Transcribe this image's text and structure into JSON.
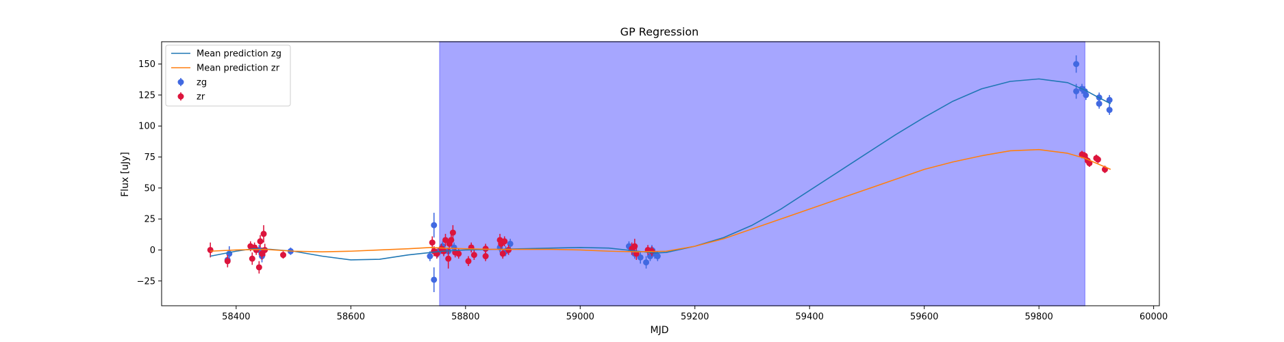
{
  "chart_data": {
    "type": "scatter",
    "title": "GP Regression",
    "xlabel": "MJD",
    "ylabel": "Flux [uJy]",
    "xlim": [
      58270,
      60010
    ],
    "ylim": [
      -45,
      168
    ],
    "xticks": [
      58400,
      58600,
      58800,
      59000,
      59200,
      59400,
      59600,
      59800,
      60000
    ],
    "yticks": [
      -25,
      0,
      25,
      50,
      75,
      100,
      125,
      150
    ],
    "legend_position": "top-left",
    "shaded_region": {
      "x0": 58755,
      "x1": 59880,
      "color": "#a6a6ff"
    },
    "colors": {
      "zg_line": "#1f77b4",
      "zr_line": "#ff7f0e",
      "zg_points": "#4169e1",
      "zr_points": "#dc143c"
    },
    "legend": [
      "Mean prediction zg",
      "Mean prediction zr",
      "zg",
      "zr"
    ],
    "series": [
      {
        "name": "Mean prediction zg",
        "kind": "line",
        "x": [
          58355,
          58400,
          58430,
          58460,
          58500,
          58550,
          58600,
          58650,
          58700,
          58740,
          58760,
          58800,
          58850,
          58900,
          58950,
          59000,
          59050,
          59100,
          59130,
          59150,
          59200,
          59250,
          59300,
          59350,
          59400,
          59450,
          59500,
          59550,
          59600,
          59650,
          59700,
          59750,
          59800,
          59850,
          59880,
          59900,
          59925
        ],
        "y": [
          -5,
          -1,
          1,
          0.5,
          -1,
          -5,
          -8,
          -7.5,
          -4,
          -2,
          -1,
          0,
          0.5,
          1,
          1.5,
          2,
          1.5,
          -1,
          -2.5,
          -2,
          3,
          10,
          20,
          33,
          48,
          63,
          78,
          93,
          107,
          120,
          130,
          136,
          138,
          135,
          129,
          124,
          118
        ]
      },
      {
        "name": "Mean prediction zr",
        "kind": "line",
        "x": [
          58355,
          58400,
          58450,
          58500,
          58550,
          58600,
          58650,
          58700,
          58740,
          58760,
          58800,
          58850,
          58900,
          58950,
          59000,
          59050,
          59100,
          59150,
          59200,
          59250,
          59300,
          59350,
          59400,
          59450,
          59500,
          59550,
          59600,
          59650,
          59700,
          59750,
          59800,
          59850,
          59880,
          59900,
          59925
        ],
        "y": [
          -1,
          0,
          0.5,
          -1,
          -1.5,
          -1,
          0,
          1,
          2,
          1.5,
          1,
          0.5,
          0.5,
          0.5,
          0,
          -1,
          -1.5,
          -1,
          3,
          9,
          17,
          25,
          33,
          41,
          49,
          57,
          65,
          71,
          76,
          80,
          81,
          78,
          74,
          70,
          65
        ]
      },
      {
        "name": "zg",
        "kind": "points",
        "points": [
          [
            58385,
            -8,
            5
          ],
          [
            58388,
            -3,
            6
          ],
          [
            58440,
            0,
            4
          ],
          [
            58445,
            -5,
            5
          ],
          [
            58495,
            -1,
            3
          ],
          [
            58738,
            -5,
            4
          ],
          [
            58745,
            20,
            10
          ],
          [
            58745,
            -24,
            10
          ],
          [
            58752,
            -2,
            4
          ],
          [
            58760,
            3,
            4
          ],
          [
            58770,
            -1,
            3
          ],
          [
            58780,
            2,
            4
          ],
          [
            58860,
            2,
            4
          ],
          [
            58870,
            -1,
            4
          ],
          [
            58878,
            5,
            4
          ],
          [
            59085,
            3,
            4
          ],
          [
            59095,
            -3,
            4
          ],
          [
            59105,
            -6,
            5
          ],
          [
            59115,
            -10,
            5
          ],
          [
            59122,
            -5,
            4
          ],
          [
            59125,
            0,
            4
          ],
          [
            59130,
            -3,
            4
          ],
          [
            59135,
            -5,
            4
          ],
          [
            59865,
            150,
            7
          ],
          [
            59865,
            128,
            6
          ],
          [
            59875,
            130,
            4
          ],
          [
            59880,
            128,
            4
          ],
          [
            59882,
            125,
            4
          ],
          [
            59905,
            123,
            4
          ],
          [
            59905,
            118,
            4
          ],
          [
            59923,
            121,
            4
          ],
          [
            59923,
            113,
            4
          ]
        ]
      },
      {
        "name": "zr",
        "kind": "points",
        "points": [
          [
            58355,
            0,
            6
          ],
          [
            58385,
            -9,
            5
          ],
          [
            58425,
            3,
            4
          ],
          [
            58428,
            -7,
            5
          ],
          [
            58432,
            2,
            4
          ],
          [
            58435,
            0,
            4
          ],
          [
            58440,
            -14,
            5
          ],
          [
            58442,
            7,
            5
          ],
          [
            58445,
            -3,
            5
          ],
          [
            58448,
            13,
            7
          ],
          [
            58450,
            0,
            5
          ],
          [
            58482,
            -4,
            3
          ],
          [
            58742,
            6,
            5
          ],
          [
            58745,
            -1,
            4
          ],
          [
            58750,
            -3,
            4
          ],
          [
            58758,
            1,
            4
          ],
          [
            58762,
            -1,
            4
          ],
          [
            58765,
            8,
            5
          ],
          [
            58770,
            -7,
            8
          ],
          [
            58772,
            5,
            5
          ],
          [
            58775,
            8,
            5
          ],
          [
            58778,
            14,
            6
          ],
          [
            58782,
            -2,
            4
          ],
          [
            58788,
            -3,
            4
          ],
          [
            58805,
            -9,
            4
          ],
          [
            58810,
            2,
            4
          ],
          [
            58815,
            -4,
            4
          ],
          [
            58835,
            1,
            4
          ],
          [
            58835,
            -5,
            4
          ],
          [
            58860,
            8,
            5
          ],
          [
            58862,
            5,
            5
          ],
          [
            58865,
            -3,
            4
          ],
          [
            58868,
            7,
            4
          ],
          [
            58875,
            0,
            4
          ],
          [
            59090,
            1,
            5
          ],
          [
            59095,
            3,
            6
          ],
          [
            59098,
            -3,
            5
          ],
          [
            59118,
            0,
            4
          ],
          [
            59125,
            -1,
            4
          ],
          [
            59875,
            77,
            3
          ],
          [
            59880,
            76,
            3
          ],
          [
            59885,
            72,
            3
          ],
          [
            59888,
            70,
            3
          ],
          [
            59900,
            74,
            3
          ],
          [
            59903,
            73,
            3
          ],
          [
            59915,
            65,
            3
          ]
        ]
      }
    ]
  }
}
